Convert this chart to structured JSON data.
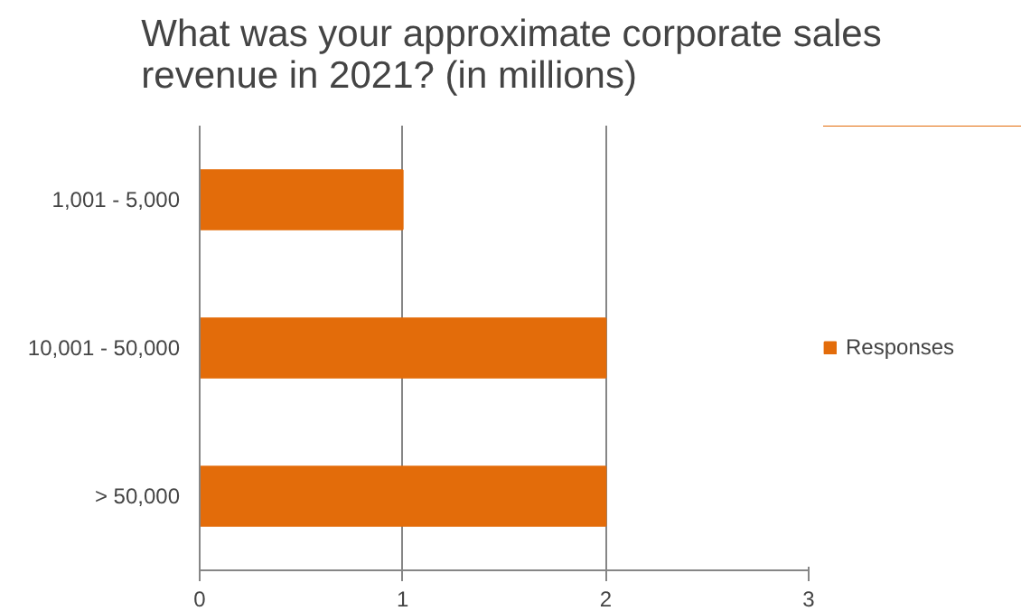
{
  "chart_data": {
    "type": "bar",
    "orientation": "horizontal",
    "title": "What was your approximate corporate sales revenue in 2021? (in millions)",
    "categories": [
      "1,001 - 5,000",
      "10,001 - 50,000",
      "> 50,000"
    ],
    "series": [
      {
        "name": "Responses",
        "color": "#e36c0a",
        "values": [
          1,
          2,
          2
        ]
      }
    ],
    "xlim": [
      0,
      3
    ],
    "xticks": [
      0,
      1,
      2,
      3
    ],
    "grid": "x",
    "legend": "right"
  }
}
